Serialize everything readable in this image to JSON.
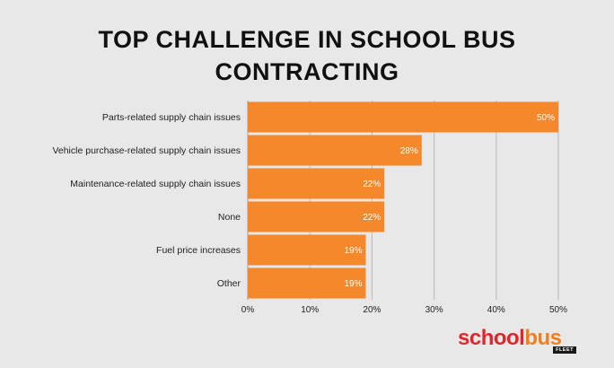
{
  "chart_data": {
    "type": "bar",
    "orientation": "horizontal",
    "title": "TOP CHALLENGE IN SCHOOL BUS\nCONTRACTING",
    "categories": [
      "Parts-related supply chain issues",
      "Vehicle purchase-related supply chain issues",
      "Maintenance-related supply chain issues",
      "None",
      "Fuel price increases",
      "Other"
    ],
    "values": [
      50,
      28,
      22,
      22,
      19,
      19
    ],
    "data_labels": [
      "50%",
      "28%",
      "22%",
      "22%",
      "19%",
      "19%"
    ],
    "xlim": [
      0,
      50
    ],
    "x_ticks": [
      "0%",
      "10%",
      "20%",
      "30%",
      "40%",
      "50%"
    ],
    "x_tick_values": [
      0,
      10,
      20,
      30,
      40,
      50
    ],
    "grid": true,
    "bar_color": "#f5882a"
  },
  "logo": {
    "school": "school",
    "bus": "bus",
    "sub": "FLEET"
  }
}
